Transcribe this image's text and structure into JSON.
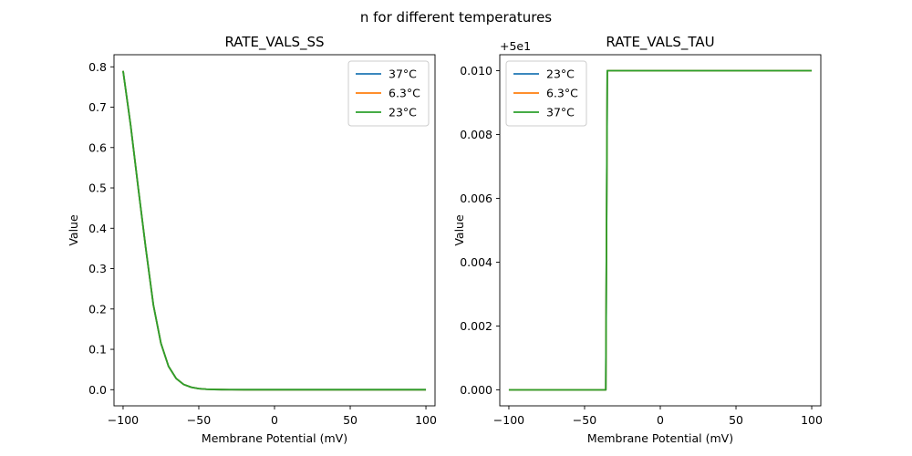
{
  "suptitle": "n for different temperatures",
  "chart_data": [
    {
      "type": "line",
      "title": "RATE_VALS_SS",
      "xlabel": "Membrane Potential (mV)",
      "ylabel": "Value",
      "xlim": [
        -106,
        106
      ],
      "ylim": [
        -0.04,
        0.83
      ],
      "xticks": [
        -100,
        -50,
        0,
        50,
        100
      ],
      "xtick_labels": [
        "−100",
        "−50",
        "0",
        "50",
        "100"
      ],
      "yticks": [
        0.0,
        0.1,
        0.2,
        0.3,
        0.4,
        0.5,
        0.6,
        0.7,
        0.8
      ],
      "ytick_labels": [
        "0.0",
        "0.1",
        "0.2",
        "0.3",
        "0.4",
        "0.5",
        "0.6",
        "0.7",
        "0.8"
      ],
      "offset_label": "",
      "legend": "top-right",
      "x": [
        -100,
        -95,
        -90,
        -85,
        -80,
        -75,
        -70,
        -65,
        -60,
        -55,
        -50,
        -45,
        -40,
        -35,
        -30,
        -20,
        -10,
        0,
        25,
        50,
        75,
        100
      ],
      "series": [
        {
          "name": "37°C",
          "color": "#1f77b4",
          "values": [
            0.79,
            0.655,
            0.5,
            0.35,
            0.21,
            0.115,
            0.058,
            0.028,
            0.013,
            0.006,
            0.0027,
            0.0012,
            0.0005,
            0.0002,
            0.0001,
            0,
            0,
            0,
            0,
            0,
            0,
            0
          ]
        },
        {
          "name": "6.3°C",
          "color": "#ff7f0e",
          "values": [
            0.79,
            0.655,
            0.5,
            0.35,
            0.21,
            0.115,
            0.058,
            0.028,
            0.013,
            0.006,
            0.0027,
            0.0012,
            0.0005,
            0.0002,
            0.0001,
            0,
            0,
            0,
            0,
            0,
            0,
            0
          ]
        },
        {
          "name": "23°C",
          "color": "#2ca02c",
          "values": [
            0.79,
            0.655,
            0.5,
            0.35,
            0.21,
            0.115,
            0.058,
            0.028,
            0.013,
            0.006,
            0.0027,
            0.0012,
            0.0005,
            0.0002,
            0.0001,
            0,
            0,
            0,
            0,
            0,
            0,
            0
          ]
        }
      ]
    },
    {
      "type": "line",
      "title": "RATE_VALS_TAU",
      "xlabel": "Membrane Potential (mV)",
      "ylabel": "Value",
      "xlim": [
        -106,
        106
      ],
      "ylim": [
        -0.0005,
        0.0105
      ],
      "xticks": [
        -100,
        -50,
        0,
        50,
        100
      ],
      "xtick_labels": [
        "−100",
        "−50",
        "0",
        "50",
        "100"
      ],
      "yticks": [
        0.0,
        0.002,
        0.004,
        0.006,
        0.008,
        0.01
      ],
      "ytick_labels": [
        "0.000",
        "0.002",
        "0.004",
        "0.006",
        "0.008",
        "0.010"
      ],
      "offset_label": "+5e1",
      "legend": "top-left",
      "x": [
        -100,
        -36,
        -35,
        100
      ],
      "series": [
        {
          "name": "23°C",
          "color": "#1f77b4",
          "values": [
            0,
            0,
            0.01,
            0.01
          ]
        },
        {
          "name": "6.3°C",
          "color": "#ff7f0e",
          "values": [
            0,
            0,
            0.01,
            0.01
          ]
        },
        {
          "name": "37°C",
          "color": "#2ca02c",
          "values": [
            0,
            0,
            0.01,
            0.01
          ]
        }
      ]
    }
  ]
}
